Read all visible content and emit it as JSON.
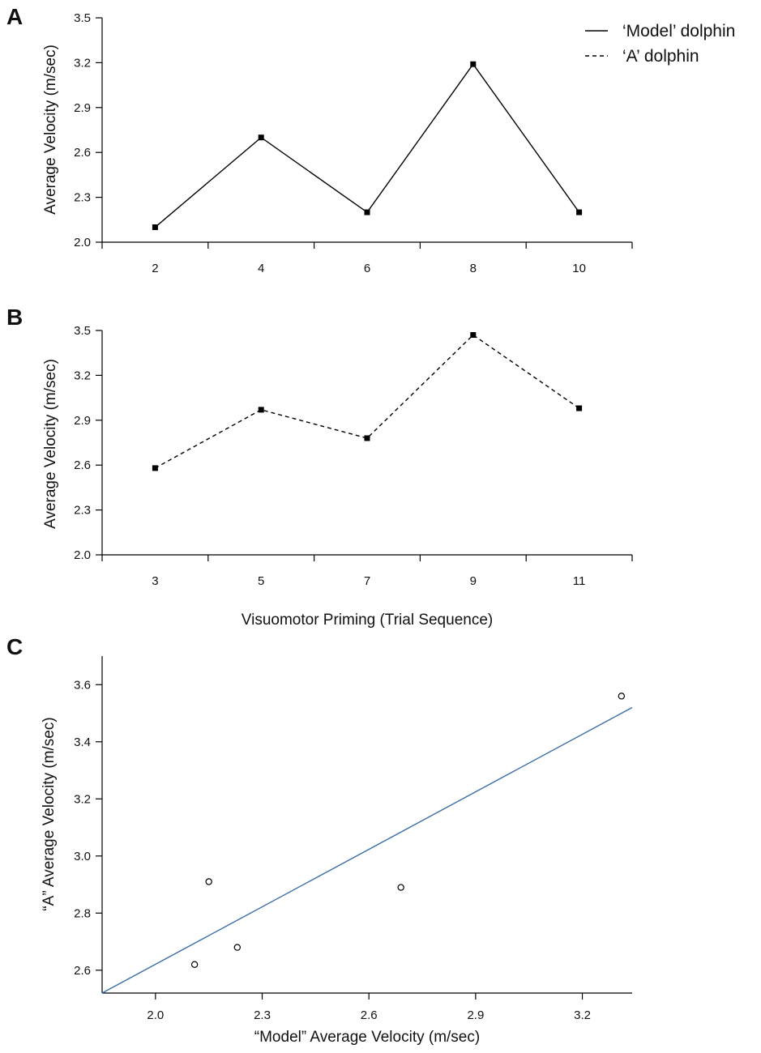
{
  "chart_data": [
    {
      "panel": "A",
      "type": "line",
      "title": "",
      "ylabel": "Average Velocity (m/sec)",
      "xlabel": "",
      "x": [
        2,
        4,
        6,
        8,
        10
      ],
      "series": [
        {
          "name": "‘Model’ dolphin",
          "style": "solid",
          "values": [
            2.1,
            2.7,
            2.2,
            3.19,
            2.2
          ]
        }
      ],
      "xlim": [
        1,
        11
      ],
      "ylim": [
        2.0,
        3.5
      ],
      "xticks": [
        2,
        4,
        6,
        8,
        10
      ],
      "yticks": [
        "2.0",
        "2.3",
        "2.6",
        "2.9",
        "3.2",
        "3.5"
      ],
      "legend": [
        {
          "label": "‘Model’ dolphin",
          "style": "solid"
        },
        {
          "label": "‘A’ dolphin",
          "style": "dashed"
        }
      ],
      "legend_position": "top-right"
    },
    {
      "panel": "B",
      "type": "line",
      "title": "",
      "ylabel": "Average Velocity (m/sec)",
      "xlabel": "Visuomotor Priming (Trial Sequence)",
      "x": [
        3,
        5,
        7,
        9,
        11
      ],
      "series": [
        {
          "name": "‘A’ dolphin",
          "style": "dashed",
          "values": [
            2.58,
            2.97,
            2.78,
            3.47,
            2.98
          ]
        }
      ],
      "xlim": [
        2,
        12
      ],
      "ylim": [
        2.0,
        3.5
      ],
      "xticks": [
        3,
        5,
        7,
        9,
        11
      ],
      "yticks": [
        "2.0",
        "2.3",
        "2.6",
        "2.9",
        "3.2",
        "3.5"
      ]
    },
    {
      "panel": "C",
      "type": "scatter",
      "title": "",
      "xlabel": "“Model” Average Velocity (m/sec)",
      "ylabel": "“A” Average Velocity (m/sec)",
      "points": [
        {
          "x": 2.11,
          "y": 2.62
        },
        {
          "x": 2.15,
          "y": 2.91
        },
        {
          "x": 2.23,
          "y": 2.68
        },
        {
          "x": 2.69,
          "y": 2.89
        },
        {
          "x": 3.31,
          "y": 3.56
        }
      ],
      "fit_line": {
        "x": [
          1.85,
          3.34
        ],
        "y": [
          2.52,
          3.52
        ],
        "color": "#3b6fa6"
      },
      "xlim": [
        1.85,
        3.34
      ],
      "ylim": [
        2.52,
        3.7
      ],
      "xticks": [
        "2.0",
        "2.3",
        "2.6",
        "2.9",
        "3.2"
      ],
      "yticks": [
        "2.6",
        "2.8",
        "3.0",
        "3.2",
        "3.4",
        "3.6"
      ]
    }
  ]
}
